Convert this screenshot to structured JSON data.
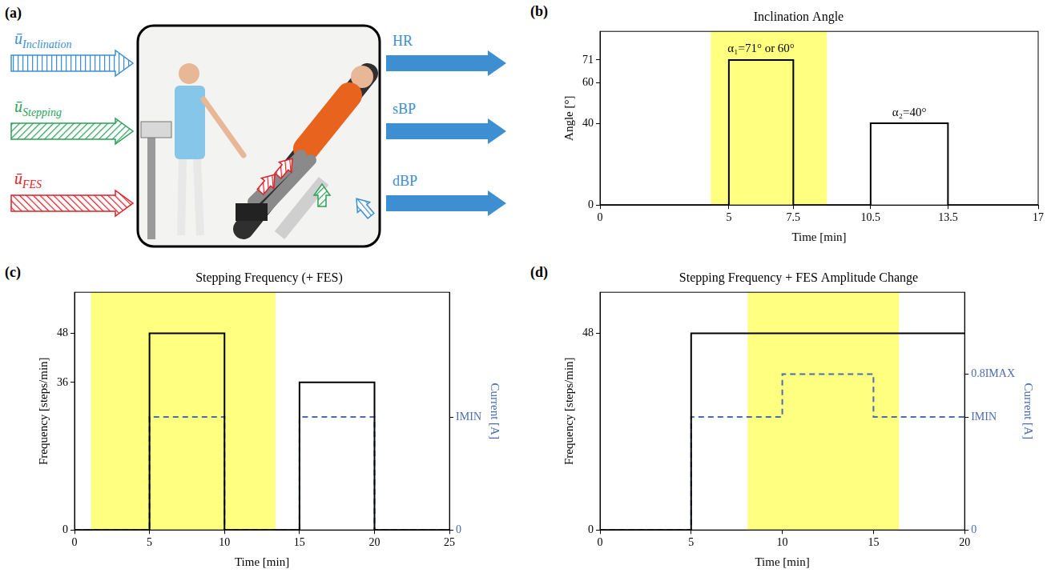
{
  "diagram": {
    "panel_label": "(a)",
    "inputs": [
      {
        "label": "ūInclination",
        "color": "#3d8fd1"
      },
      {
        "label": "ūStepping",
        "color": "#2ca05a"
      },
      {
        "label": "ūFES",
        "color": "#e0202a"
      }
    ],
    "outputs": [
      {
        "label": "HR",
        "color": "#3d8fd1"
      },
      {
        "label": "sBP",
        "color": "#3d8fd1"
      },
      {
        "label": "dBP",
        "color": "#3d8fd1"
      }
    ]
  },
  "chart_data": [
    {
      "panel_label": "(b)",
      "type": "line",
      "title": "Inclination Angle",
      "x_label": "Time [min]",
      "y_label": "Angle [°]",
      "series": [
        {
          "x": [
            0,
            5,
            5,
            7.5,
            7.5,
            10.5,
            10.5,
            13.5,
            13.5,
            17
          ],
          "values": [
            0,
            0,
            71,
            71,
            0,
            0,
            40,
            40,
            0,
            0
          ],
          "color": "#000000",
          "line_style": "solid"
        }
      ],
      "xlim": [
        0,
        17
      ],
      "xticks": [
        0,
        5,
        7.5,
        10.5,
        13.5,
        17
      ],
      "ylim": [
        0,
        85
      ],
      "yticks": [
        0,
        40,
        60,
        71
      ],
      "highlight": [
        [
          4.3,
          8.8
        ]
      ],
      "annotations": [
        "α₁=71° or 60°",
        "α₂=40°"
      ],
      "grid": false
    },
    {
      "panel_label": "(c)",
      "type": "line",
      "title": "Stepping Frequency (+ FES)",
      "x_label": "Time [min]",
      "y_label": "Frequency [steps/min]",
      "y2_label": "Current [A]",
      "series": [
        {
          "x": [
            0,
            5,
            5,
            10,
            10,
            15,
            15,
            20,
            20,
            25
          ],
          "values": [
            0,
            0,
            48,
            48,
            0,
            0,
            36,
            36,
            0,
            0
          ],
          "color": "#000000",
          "line_style": "solid"
        },
        {
          "x": [
            0,
            5,
            5,
            10,
            10,
            15,
            15,
            20,
            20,
            25
          ],
          "values": [
            0,
            0,
            0.58,
            0.58,
            0,
            0,
            0.58,
            0.58,
            0,
            0
          ],
          "color": "#4a6cb3",
          "line_style": "dashed",
          "axis": "y2"
        }
      ],
      "xlim": [
        0,
        25
      ],
      "xticks": [
        0,
        5,
        10,
        15,
        20,
        25
      ],
      "ylim": [
        0,
        58
      ],
      "yticks": [
        0,
        36,
        48
      ],
      "y2lim": [
        0,
        1.22
      ],
      "y2ticks": [
        0,
        {
          "value": 0.58,
          "label": "IMIN"
        }
      ],
      "highlight": [
        [
          1.1,
          13.4
        ]
      ],
      "grid": false
    },
    {
      "panel_label": "(d)",
      "type": "line",
      "title": "Stepping Frequency + FES Amplitude Change",
      "x_label": "Time [min]",
      "y_label": "Frequency [steps/min]",
      "y2_label": "Current [A]",
      "series": [
        {
          "x": [
            0,
            5,
            5,
            20
          ],
          "values": [
            0,
            0,
            48,
            48
          ],
          "color": "#000000",
          "line_style": "solid"
        },
        {
          "x": [
            0,
            5,
            5,
            10,
            10,
            15,
            15,
            20
          ],
          "values": [
            0,
            0,
            0.58,
            0.58,
            0.8,
            0.8,
            0.58,
            0.58
          ],
          "color": "#4a6cb3",
          "line_style": "dashed",
          "axis": "y2"
        }
      ],
      "xlim": [
        0,
        20
      ],
      "xticks": [
        0,
        5,
        10,
        15,
        20
      ],
      "ylim": [
        0,
        58
      ],
      "yticks": [
        0,
        48
      ],
      "y2lim": [
        0,
        1.22
      ],
      "y2ticks": [
        0,
        {
          "value": 0.58,
          "label": "IMIN"
        },
        {
          "value": 0.8,
          "label": "0.8IMAX"
        }
      ],
      "highlight": [
        [
          8.1,
          16.4
        ]
      ],
      "grid": false
    }
  ]
}
